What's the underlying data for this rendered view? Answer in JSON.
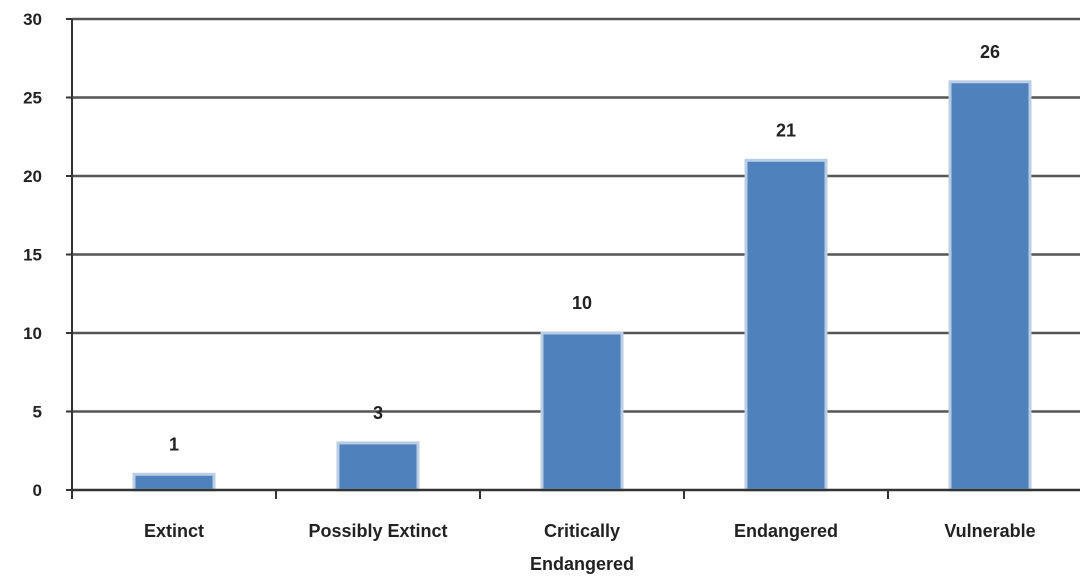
{
  "chart_data": {
    "type": "bar",
    "categories": [
      "Extinct",
      "Possibly Extinct",
      "Critically Endangered",
      "Endangered",
      "Vulnerable"
    ],
    "category_lines": [
      [
        "Extinct"
      ],
      [
        "Possibly Extinct"
      ],
      [
        "Critically",
        "Endangered"
      ],
      [
        "Endangered"
      ],
      [
        "Vulnerable"
      ]
    ],
    "values": [
      1,
      3,
      10,
      21,
      26
    ],
    "ylim": [
      0,
      30
    ],
    "yticks": [
      0,
      5,
      10,
      15,
      20,
      25,
      30
    ],
    "grid": true,
    "data_labels": true,
    "bar_color": "#4f81bd",
    "bar_edge_color": "#b9cde5",
    "grid_color": "#555555",
    "axis_color": "#333333"
  }
}
